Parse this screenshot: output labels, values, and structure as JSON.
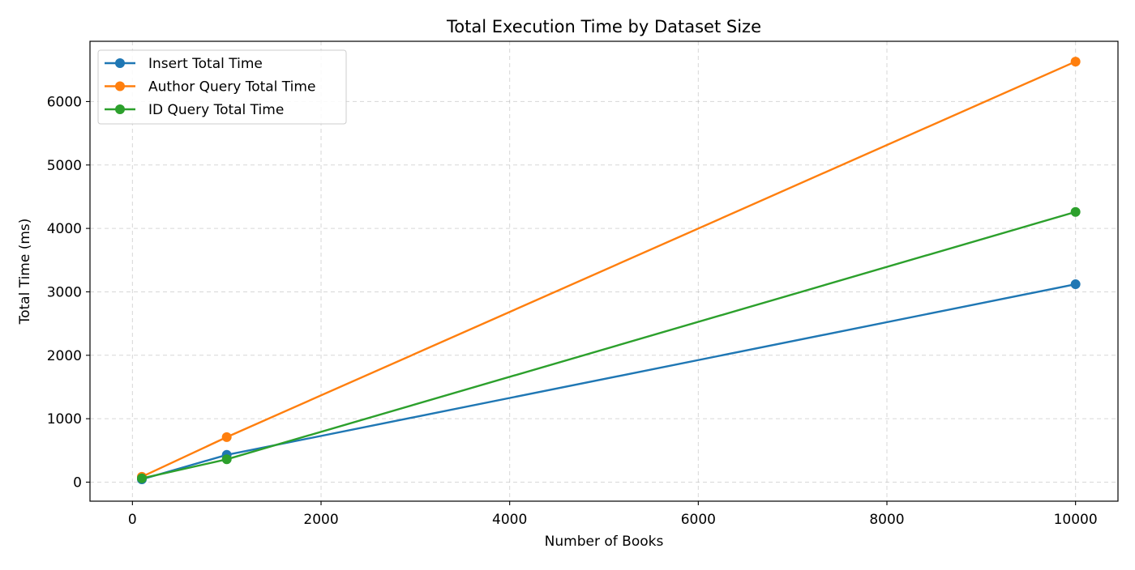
{
  "chart_data": {
    "type": "line",
    "title": "Total Execution Time by Dataset Size",
    "xlabel": "Number of Books",
    "ylabel": "Total Time (ms)",
    "x": [
      100,
      1000,
      10000
    ],
    "xlim": [
      -450,
      10450
    ],
    "ylim": [
      -300,
      6950
    ],
    "xticks": [
      0,
      2000,
      4000,
      6000,
      8000,
      10000
    ],
    "yticks": [
      0,
      1000,
      2000,
      3000,
      4000,
      5000,
      6000
    ],
    "grid": true,
    "legend_position": "top-left",
    "series": [
      {
        "name": "Insert Total Time",
        "color": "#1f77b4",
        "values": [
          45,
          430,
          3120
        ]
      },
      {
        "name": "Author Query Total Time",
        "color": "#ff7f0e",
        "values": [
          85,
          710,
          6630
        ]
      },
      {
        "name": "ID Query Total Time",
        "color": "#2ca02c",
        "values": [
          60,
          360,
          4260
        ]
      }
    ]
  }
}
